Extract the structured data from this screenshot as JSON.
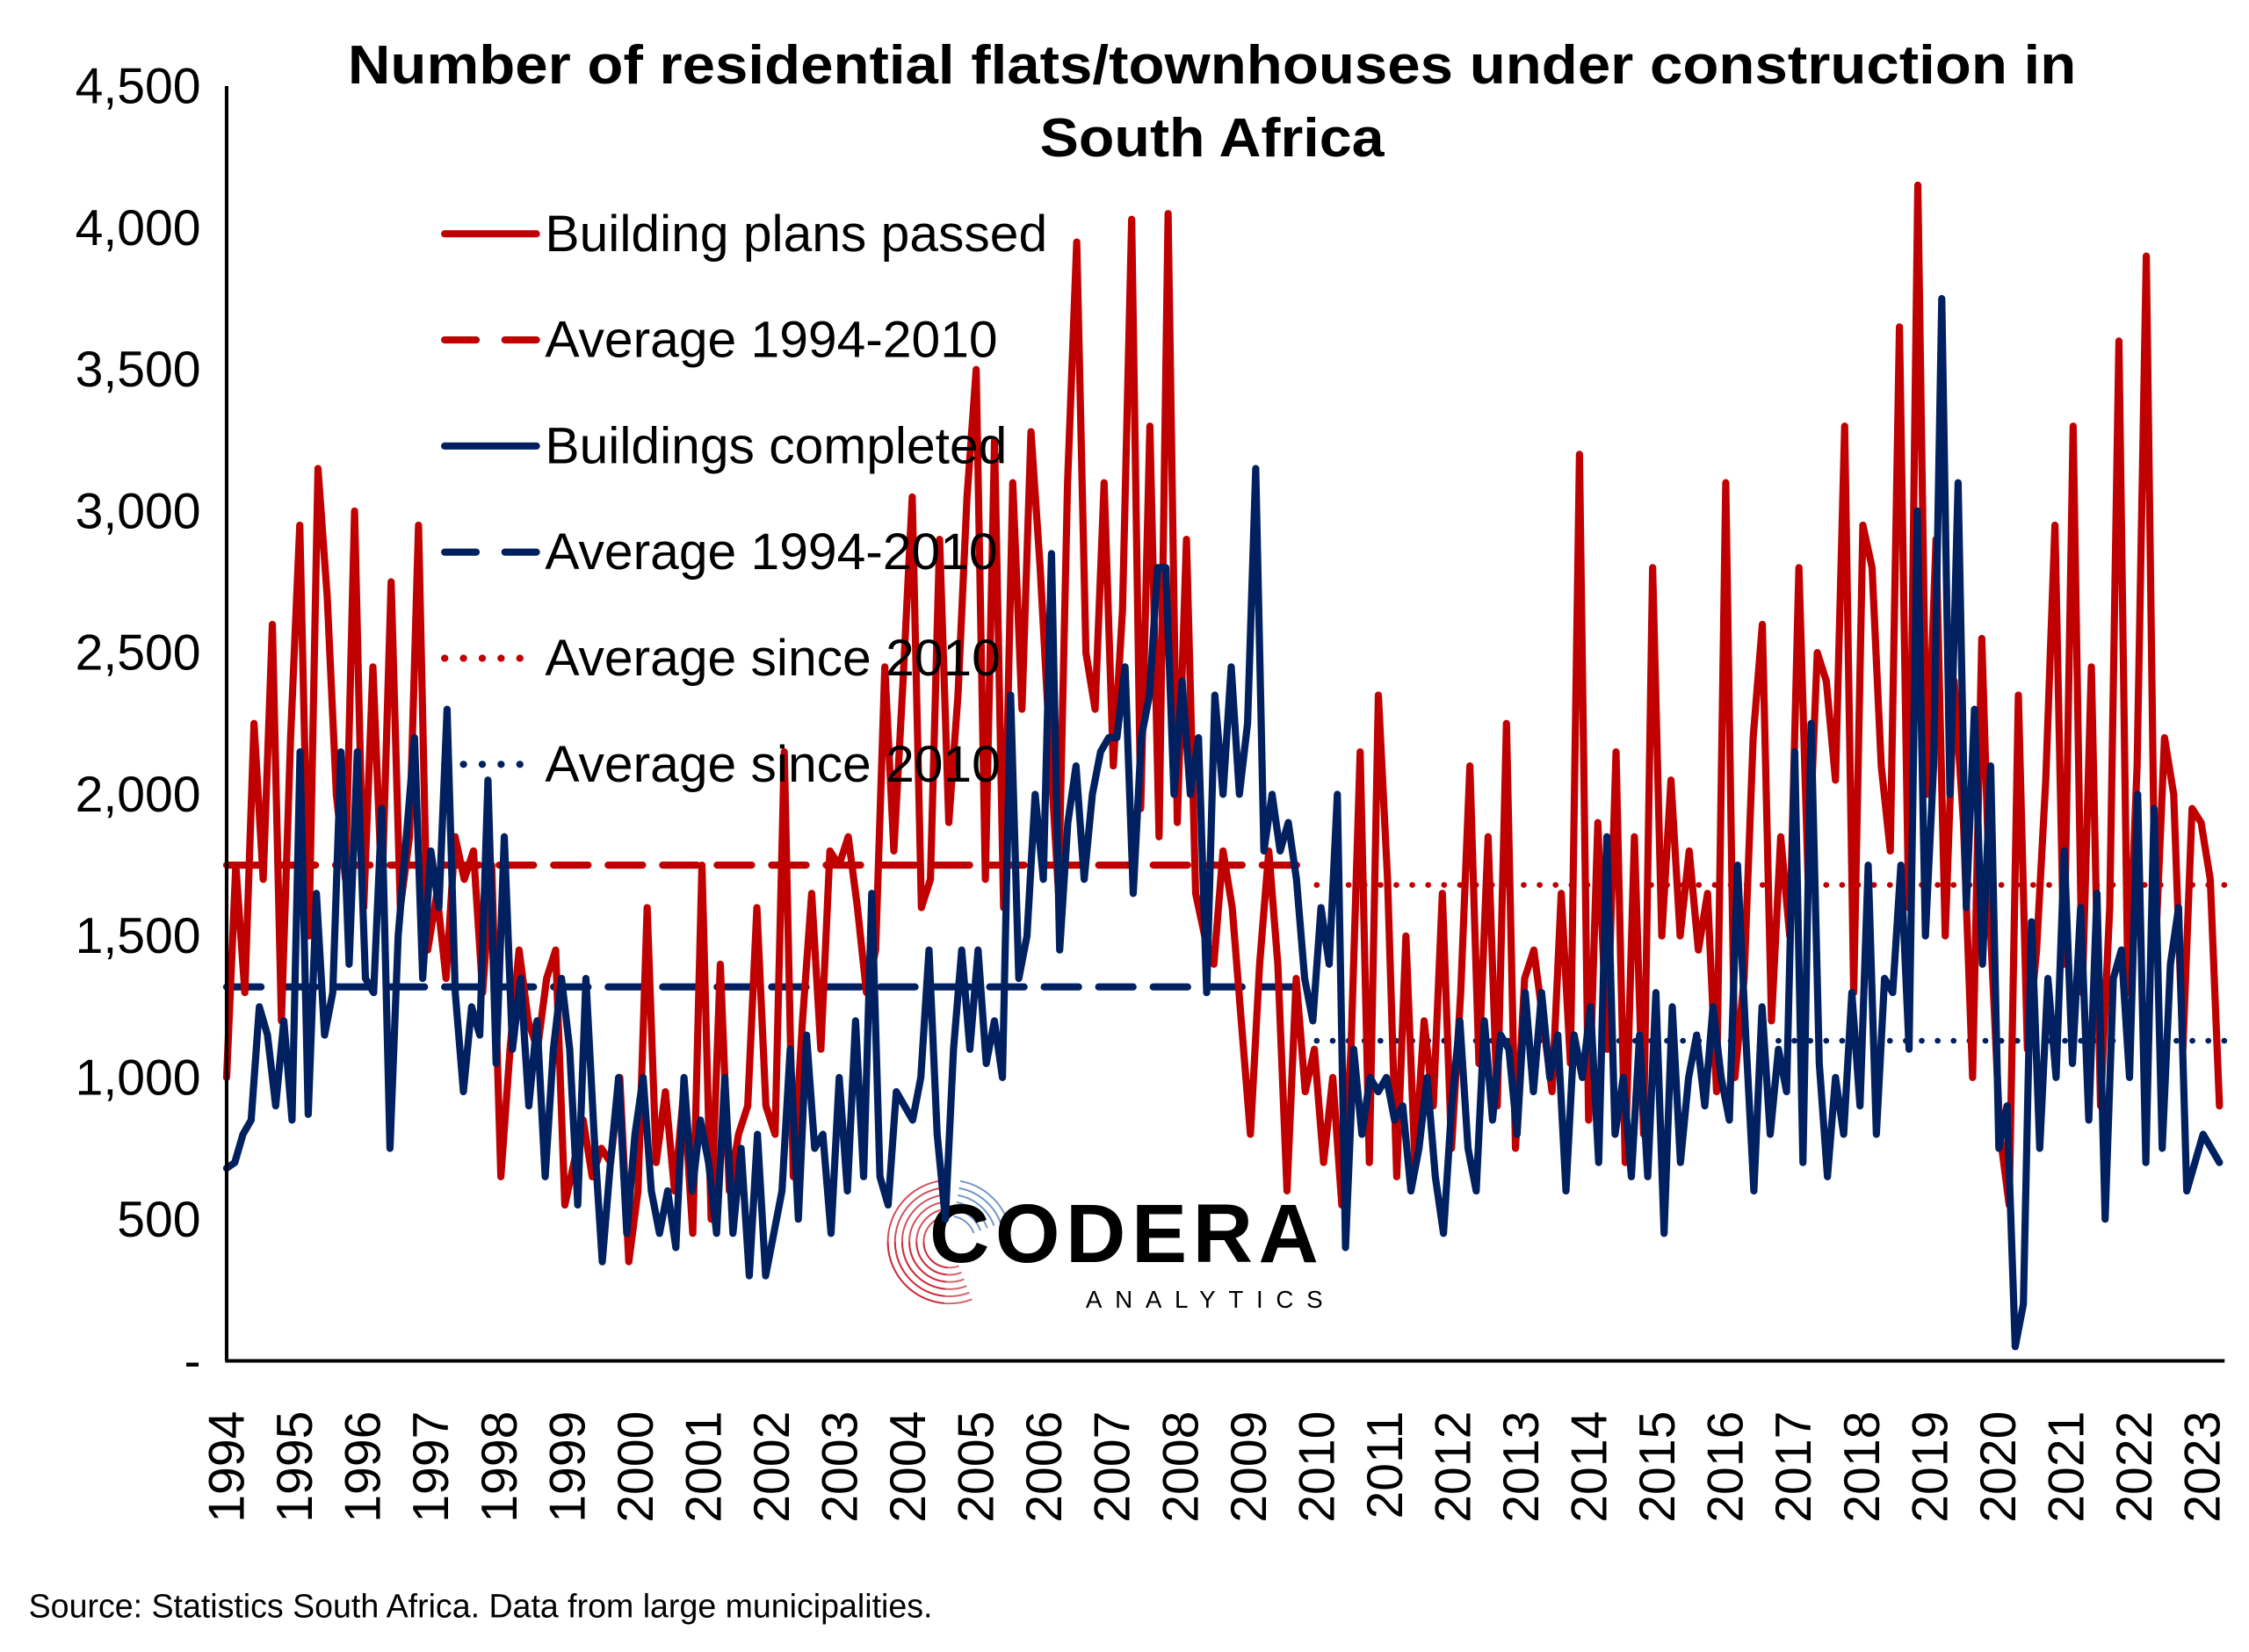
{
  "chart_data": {
    "type": "line",
    "title": "Number of residential flats/townhouses under construction in South Africa",
    "title_lines": [
      "Number of residential flats/townhouses under construction in",
      "South Africa"
    ],
    "xlabel": "",
    "ylabel": "",
    "ylim": [
      0,
      4500
    ],
    "y_ticks": [
      0,
      500,
      1000,
      1500,
      2000,
      2500,
      3000,
      3500,
      4000,
      4500
    ],
    "y_tick_labels": [
      "-",
      "500",
      "1,000",
      "1,500",
      "2,000",
      "2,500",
      "3,000",
      "3,500",
      "4,000",
      "4,500"
    ],
    "x_tick_labels": [
      "1994",
      "1995",
      "1996",
      "1997",
      "1998",
      "1999",
      "2000",
      "2001",
      "2002",
      "2003",
      "2004",
      "2005",
      "2006",
      "2007",
      "2008",
      "2009",
      "2010",
      "2011",
      "2012",
      "2013",
      "2014",
      "2015",
      "2016",
      "2017",
      "2018",
      "2019",
      "2020",
      "2021",
      "2022",
      "2023"
    ],
    "x_range": [
      "1994-01",
      "2023-04"
    ],
    "grid": false,
    "legend_placement": "top-left",
    "series": [
      {
        "name": "Building plans passed",
        "color": "#C00000",
        "style": "solid",
        "values": [
          1000,
          1750,
          1300,
          2250,
          1700,
          2600,
          1200,
          2200,
          2950,
          1500,
          3150,
          2700,
          2000,
          1700,
          3000,
          1600,
          2450,
          1650,
          2750,
          1600,
          1850,
          2950,
          1450,
          1650,
          1350,
          1850,
          1700,
          1800,
          1300,
          1750,
          650,
          1100,
          1450,
          1200,
          1100,
          1350,
          1450,
          550,
          700,
          850,
          650,
          750,
          700,
          1000,
          350,
          600,
          1600,
          700,
          950,
          600,
          950,
          450,
          1750,
          500,
          1400,
          600,
          800,
          900,
          1600,
          900,
          800,
          2150,
          650,
          1200,
          1650,
          1100,
          1800,
          1750,
          1850,
          1600,
          1300,
          1450,
          2450,
          1800,
          2400,
          3050,
          1600,
          1700,
          2900,
          1900,
          2350,
          3050,
          3500,
          1700,
          3250,
          1600,
          3100,
          2300,
          3280,
          2800,
          2200,
          1650,
          3100,
          3950,
          2500,
          2300,
          3100,
          2100,
          2650,
          4030,
          1950,
          3300,
          1850,
          4050,
          1900,
          2900,
          1650,
          1500,
          1400,
          1800,
          1600,
          1200,
          800,
          1400,
          1800,
          1400,
          600,
          1350,
          950,
          1100,
          700,
          1000,
          550,
          1100,
          2150,
          700,
          2350,
          1700,
          650,
          1500,
          700,
          1200,
          900,
          1650,
          750,
          1300,
          2100,
          1050,
          1850,
          900,
          2250,
          750,
          1350,
          1450,
          1200,
          950,
          1650,
          1050,
          3200,
          850,
          1900,
          1100,
          2150,
          700,
          1850,
          800,
          2800,
          1500,
          2050,
          1500,
          1800,
          1450,
          1650,
          950,
          3100,
          1000,
          1350,
          2200,
          2600,
          1200,
          1850,
          1500,
          2800,
          1700,
          2500,
          2400,
          2050,
          3300,
          1300,
          2950,
          2800,
          2100,
          1800,
          3650,
          1600,
          4150,
          2000,
          2900,
          1500,
          2400,
          1900,
          1000,
          2550,
          1500,
          800,
          550,
          2350,
          1100,
          1450,
          2050,
          2950,
          1400,
          3300,
          1300,
          2450,
          900,
          1600,
          3600,
          1300,
          2100,
          3900,
          1450,
          2200,
          2000,
          1100,
          1950,
          1900,
          1700,
          900
        ]
      },
      {
        "name": "Average 1994-2010",
        "color": "#C00000",
        "style": "dashed",
        "value": 1750,
        "x_range": [
          "1994-01",
          "2009-12"
        ]
      },
      {
        "name": "Buildings completed",
        "color": "#002060",
        "style": "solid",
        "values": [
          680,
          700,
          800,
          850,
          1250,
          1150,
          900,
          1200,
          850,
          2150,
          870,
          1650,
          1150,
          1300,
          2150,
          1400,
          2150,
          1350,
          1300,
          1950,
          750,
          1500,
          1850,
          2200,
          1350,
          1800,
          1600,
          2300,
          1300,
          950,
          1250,
          1150,
          2050,
          1050,
          1850,
          1100,
          1350,
          900,
          1200,
          650,
          1100,
          1350,
          1100,
          550,
          1350,
          800,
          350,
          700,
          1000,
          450,
          800,
          1000,
          600,
          450,
          600,
          400,
          1000,
          600,
          850,
          700,
          450,
          1000,
          450,
          750,
          300,
          800,
          300,
          450,
          600,
          1100,
          500,
          1150,
          750,
          800,
          450,
          1000,
          600,
          1200,
          650,
          1650,
          650,
          550,
          950,
          900,
          850,
          1000,
          1450,
          800,
          500,
          1100,
          1450,
          1100,
          1450,
          1050,
          1200,
          1000,
          2350,
          1350,
          1500,
          2000,
          1700,
          2850,
          1450,
          1900,
          2100,
          1700,
          2000,
          2150,
          2200,
          2200,
          2450,
          1650,
          2200,
          2350,
          2800,
          2800,
          2000,
          2400,
          2000,
          2200,
          1300,
          2350,
          2000,
          2450,
          2000,
          2250,
          3150,
          1800,
          2000,
          1800,
          1900,
          1700,
          1350,
          1200,
          1600,
          1400,
          2000,
          400,
          1100,
          800,
          1000,
          950,
          1000,
          850,
          900,
          600,
          750,
          1000,
          650,
          450,
          900,
          1200,
          750,
          600,
          1200,
          850,
          1150,
          1100,
          800,
          1300,
          950,
          1300,
          1000,
          1150,
          600,
          1150,
          1000,
          1250,
          700,
          1850,
          800,
          1000,
          650,
          1150,
          650,
          1300,
          450,
          1250,
          700,
          1000,
          1150,
          900,
          1250,
          1000,
          850,
          1750,
          1150,
          600,
          1250,
          800,
          1100,
          950,
          2150,
          700,
          2250,
          1050,
          650,
          1000,
          800,
          1300,
          900,
          1750,
          800,
          1350,
          1300,
          1750,
          1100,
          3000,
          1500,
          2100,
          3750,
          2000,
          3100,
          1600,
          2300,
          1400,
          2100,
          750,
          900,
          50,
          200,
          1550,
          750,
          1350,
          1000,
          1800,
          1050,
          1600,
          850,
          1650,
          500,
          1350,
          1450,
          1000,
          2000,
          700,
          1950,
          750,
          1400,
          1600,
          600,
          700,
          800,
          750,
          700
        ]
      },
      {
        "name": "Average 1994-2010",
        "color": "#002060",
        "style": "dashed",
        "value": 1320,
        "x_range": [
          "1994-01",
          "2009-12"
        ]
      },
      {
        "name": "Average since 2010",
        "color": "#C00000",
        "style": "dotted",
        "value": 1680,
        "x_range": [
          "2010-01",
          "2023-04"
        ]
      },
      {
        "name": "Average since 2010",
        "color": "#002060",
        "style": "dotted",
        "value": 1130,
        "x_range": [
          "2010-01",
          "2023-04"
        ]
      }
    ],
    "source": "Source: Statistics South Africa.  Data from large municipalities."
  },
  "logo": {
    "name": "CODERA",
    "sub": "ANALYTICS",
    "colors": [
      "#C8202F",
      "#4A7BB7"
    ]
  }
}
